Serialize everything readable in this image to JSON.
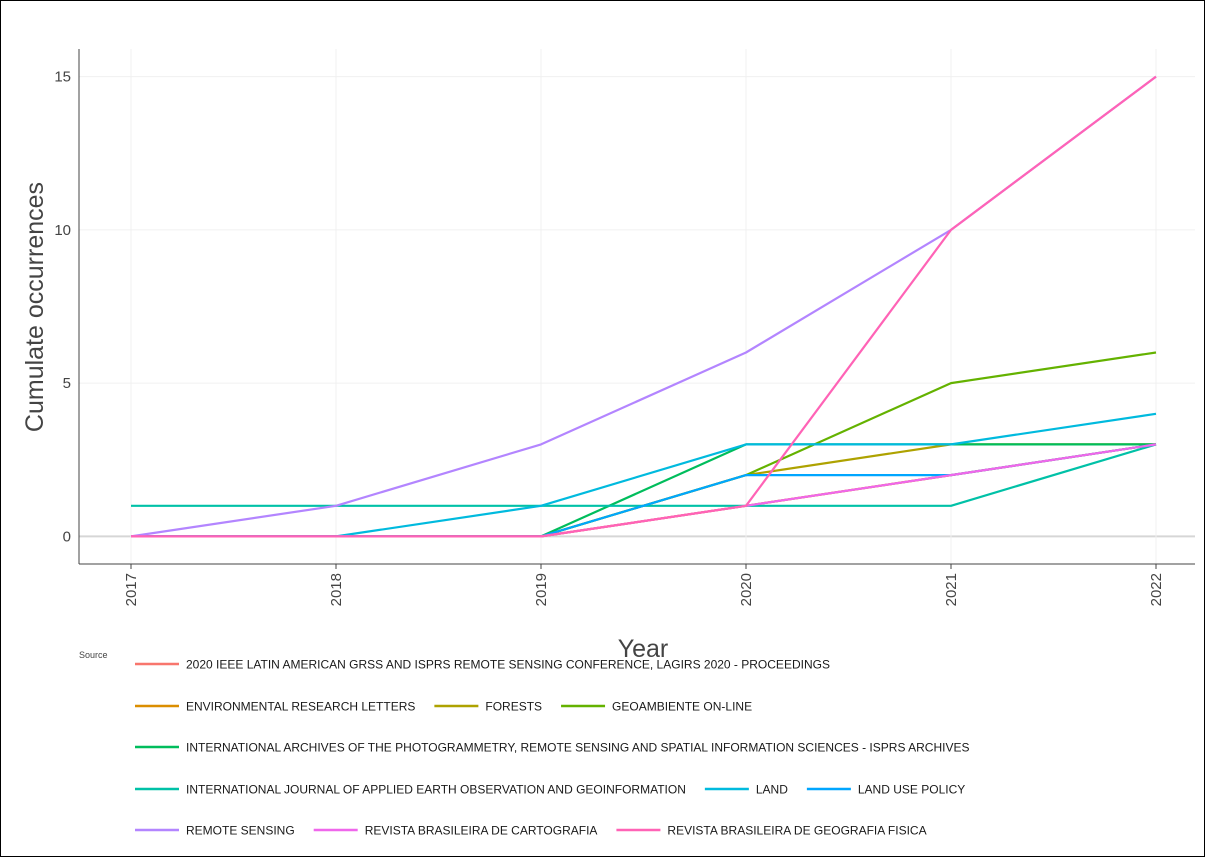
{
  "chart_data": {
    "type": "line",
    "title": "",
    "xlabel": "Year",
    "ylabel": "Cumulate occurrences",
    "x": [
      "2017",
      "2018",
      "2019",
      "2020",
      "2021",
      "2022"
    ],
    "xlim": [
      2017,
      2022
    ],
    "ylim": [
      -0.9,
      15.9
    ],
    "yticks": [
      "0",
      "5",
      "10",
      "15"
    ],
    "grid": true,
    "legend_title": "Source",
    "legend_position": "bottom",
    "series": [
      {
        "name": "2020 IEEE LATIN AMERICAN GRSS AND ISPRS REMOTE SENSING CONFERENCE, LAGIRS 2020 - PROCEEDINGS",
        "color": "#F8766D",
        "values": [
          0,
          0,
          0,
          1,
          2,
          3
        ]
      },
      {
        "name": "ENVIRONMENTAL RESEARCH LETTERS",
        "color": "#DB8E00",
        "values": [
          0,
          0,
          0,
          1,
          2,
          3
        ]
      },
      {
        "name": "FORESTS",
        "color": "#AEA200",
        "values": [
          0,
          0,
          0,
          2,
          3,
          3
        ]
      },
      {
        "name": "GEOAMBIENTE ON-LINE",
        "color": "#64B200",
        "values": [
          0,
          0,
          0,
          2,
          5,
          6
        ]
      },
      {
        "name": "INTERNATIONAL ARCHIVES OF THE PHOTOGRAMMETRY, REMOTE SENSING AND SPATIAL INFORMATION SCIENCES - ISPRS ARCHIVES",
        "color": "#00BD5C",
        "values": [
          0,
          0,
          0,
          3,
          3,
          3
        ]
      },
      {
        "name": "INTERNATIONAL JOURNAL OF APPLIED EARTH OBSERVATION AND GEOINFORMATION",
        "color": "#00C1A7",
        "values": [
          1,
          1,
          1,
          1,
          1,
          3
        ]
      },
      {
        "name": "LAND",
        "color": "#00BADE",
        "values": [
          0,
          0,
          1,
          3,
          3,
          4
        ]
      },
      {
        "name": "LAND USE POLICY",
        "color": "#00A6FF",
        "values": [
          0,
          0,
          0,
          2,
          2,
          3
        ]
      },
      {
        "name": "REMOTE SENSING",
        "color": "#B385FF",
        "values": [
          0,
          1,
          3,
          6,
          10,
          15
        ]
      },
      {
        "name": "REVISTA BRASILEIRA DE CARTOGRAFIA",
        "color": "#EF67EB",
        "values": [
          0,
          0,
          0,
          1,
          2,
          3
        ]
      },
      {
        "name": "REVISTA BRASILEIRA DE GEOGRAFIA FISICA",
        "color": "#FF63B6",
        "values": [
          0,
          0,
          0,
          1,
          10,
          15
        ]
      }
    ]
  }
}
